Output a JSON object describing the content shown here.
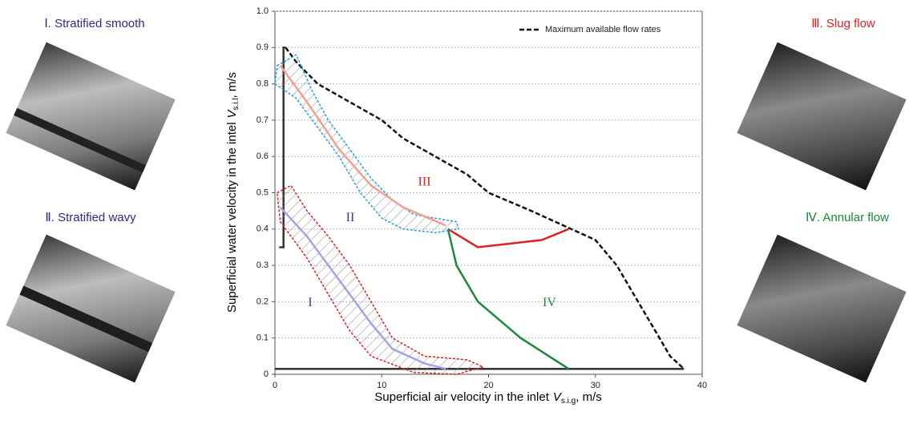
{
  "chart_data": {
    "type": "line",
    "xlabel": {
      "text": "Superficial air velocity in the inlet",
      "symbol": "V",
      "subscript": "s.i.g",
      "unit": ", m/s"
    },
    "ylabel": {
      "text": "Superficial water velocity in the intel",
      "symbol": "V",
      "subscript": "s.i.l",
      "unit": ", m/s"
    },
    "xlim": [
      0,
      40
    ],
    "xticks": [
      0,
      10,
      20,
      30,
      40
    ],
    "ylim": [
      0,
      1
    ],
    "yticks": [
      0,
      0.1,
      0.2,
      0.3,
      0.4,
      0.5,
      0.6,
      0.7,
      0.8,
      0.9,
      {
        "value": 1,
        "label": "1.0"
      }
    ],
    "grid": true,
    "legend": "upper right",
    "series": [
      {
        "name": "Maximum available flow rates",
        "color": "#111111",
        "dash": true,
        "closed": false,
        "x": [
          1,
          2,
          4,
          7,
          10,
          12,
          15,
          18,
          20,
          24,
          27,
          30,
          32,
          33,
          34,
          35,
          36,
          37,
          38.3
        ],
        "values": [
          0.9,
          0.86,
          0.8,
          0.75,
          0.7,
          0.65,
          0.6,
          0.55,
          0.5,
          0.45,
          0.41,
          0.37,
          0.3,
          0.25,
          0.2,
          0.15,
          0.1,
          0.05,
          0.015
        ]
      },
      {
        "color": "#333333",
        "dash": false,
        "closed": false,
        "x": [
          0.4,
          0.8,
          0.8,
          1
        ],
        "values": [
          0.35,
          0.35,
          0.9,
          0.9
        ]
      },
      {
        "color": "#333333",
        "dash": false,
        "closed": false,
        "x": [
          0,
          38.3
        ],
        "values": [
          0.015,
          0.015
        ]
      },
      {
        "color": "#e02020",
        "dash": false,
        "closed": false,
        "x": [
          16.2,
          19,
          25,
          27.5
        ],
        "values": [
          0.4,
          0.35,
          0.37,
          0.4
        ]
      },
      {
        "color": "#1a8a3a",
        "dash": false,
        "closed": false,
        "x": [
          16.2,
          17,
          19,
          23,
          27.5
        ],
        "values": [
          0.4,
          0.3,
          0.2,
          0.1,
          0.015
        ]
      },
      {
        "color": "#e02020",
        "dash": true,
        "closed": true,
        "x": [
          0.2,
          1.5,
          3,
          5,
          7,
          9,
          11,
          14,
          18,
          19.5,
          17,
          13,
          9,
          7,
          5,
          3,
          0.5
        ],
        "values": [
          0.5,
          0.52,
          0.45,
          0.38,
          0.3,
          0.2,
          0.1,
          0.05,
          0.04,
          0.02,
          0,
          0.005,
          0.05,
          0.12,
          0.22,
          0.32,
          0.42
        ]
      },
      {
        "color": "#2aa0e0",
        "dash": true,
        "closed": true,
        "x": [
          0.2,
          2,
          3.5,
          5,
          7,
          9,
          11,
          13,
          15,
          17,
          17.2,
          15,
          12,
          10,
          8,
          6,
          4,
          2,
          0
        ],
        "values": [
          0.85,
          0.88,
          0.78,
          0.7,
          0.62,
          0.54,
          0.48,
          0.44,
          0.43,
          0.42,
          0.4,
          0.39,
          0.4,
          0.43,
          0.5,
          0.6,
          0.68,
          0.76,
          0.8
        ]
      },
      {
        "color": "#a8a0e8",
        "dash": false,
        "closed": false,
        "x": [
          0.5,
          3,
          5,
          7,
          9,
          11,
          14,
          16
        ],
        "values": [
          0.46,
          0.38,
          0.3,
          0.22,
          0.14,
          0.07,
          0.03,
          0.015
        ]
      },
      {
        "color": "#f4a090",
        "dash": false,
        "closed": false,
        "x": [
          0.5,
          3,
          6,
          9,
          12,
          16
        ],
        "values": [
          0.85,
          0.75,
          0.62,
          0.52,
          0.46,
          0.41
        ]
      }
    ],
    "annotations": [
      {
        "text": "III",
        "x": 14,
        "y": 0.528,
        "color": "#e02020"
      },
      {
        "text": "II",
        "x": 7.05,
        "y": 0.43,
        "color": "#3a3aa0"
      },
      {
        "text": "I",
        "x": 3.3,
        "y": 0.196,
        "color": "#3a3aa0"
      },
      {
        "text": "IV",
        "x": 25.7,
        "y": 0.196,
        "color": "#1a8a3a"
      }
    ]
  },
  "panels": [
    {
      "label": "Ⅰ. Stratified smooth",
      "color": "#2e2a8a"
    },
    {
      "label": "Ⅱ. Stratified wavy",
      "color": "#2e2a8a"
    },
    {
      "label": "Ⅲ. Slug flow",
      "color": "#e02020"
    },
    {
      "label": "Ⅳ. Annular flow",
      "color": "#1a8a3a"
    }
  ]
}
